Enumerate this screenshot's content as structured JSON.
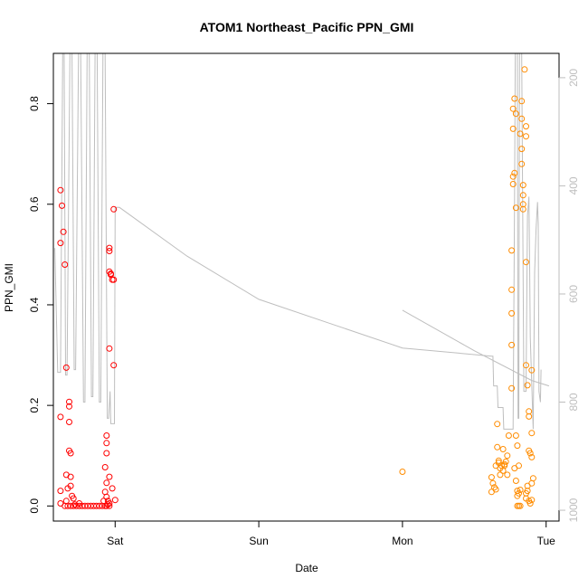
{
  "chart_data": {
    "type": "scatter",
    "title": "ATOM1 Northeast_Pacific PPN_GMI",
    "xlabel": "Date",
    "ylabel": "PPN_GMI",
    "x_ticks": [
      {
        "label": "Sat",
        "value": 1.0
      },
      {
        "label": "Sun",
        "value": 2.0
      },
      {
        "label": "Mon",
        "value": 3.0
      },
      {
        "label": "Tue",
        "value": 4.0
      }
    ],
    "xlim": [
      0.57,
      4.09
    ],
    "ylim": [
      -0.03,
      0.9
    ],
    "y_ticks": [
      0.0,
      0.2,
      0.4,
      0.6,
      0.8
    ],
    "y2_ticks": [
      200,
      400,
      600,
      800,
      1000
    ],
    "y2lim": [
      1020,
      155
    ],
    "y2_color": "#bebebe",
    "grid": false,
    "series": [
      {
        "color": "#ff0000",
        "points": [
          [
            0.62,
            0.628
          ],
          [
            0.63,
            0.597
          ],
          [
            0.62,
            0.523
          ],
          [
            0.64,
            0.545
          ],
          [
            0.65,
            0.48
          ],
          [
            0.66,
            0.275
          ],
          [
            0.68,
            0.207
          ],
          [
            0.68,
            0.198
          ],
          [
            0.62,
            0.177
          ],
          [
            0.68,
            0.167
          ],
          [
            0.68,
            0.11
          ],
          [
            0.69,
            0.105
          ],
          [
            0.66,
            0.062
          ],
          [
            0.69,
            0.058
          ],
          [
            0.62,
            0.03
          ],
          [
            0.67,
            0.035
          ],
          [
            0.69,
            0.04
          ],
          [
            0.7,
            0.02
          ],
          [
            0.66,
            0.01
          ],
          [
            0.62,
            0.005
          ],
          [
            0.71,
            0.015
          ],
          [
            0.72,
            0.003
          ],
          [
            0.75,
            0.005
          ],
          [
            0.65,
            0.0
          ],
          [
            0.67,
            0.0
          ],
          [
            0.69,
            0.0
          ],
          [
            0.71,
            0.0
          ],
          [
            0.73,
            0.0
          ],
          [
            0.75,
            0.0
          ],
          [
            0.77,
            0.0
          ],
          [
            0.79,
            0.0
          ],
          [
            0.81,
            0.0
          ],
          [
            0.83,
            0.0
          ],
          [
            0.85,
            0.0
          ],
          [
            0.87,
            0.0
          ],
          [
            0.89,
            0.0
          ],
          [
            0.91,
            0.0
          ],
          [
            0.93,
            0.0
          ],
          [
            0.94,
            0.0
          ],
          [
            0.95,
            0.003
          ],
          [
            0.92,
            0.01
          ],
          [
            0.96,
            0.0
          ],
          [
            0.94,
            0.14
          ],
          [
            0.94,
            0.125
          ],
          [
            0.94,
            0.105
          ],
          [
            0.93,
            0.077
          ],
          [
            0.96,
            0.058
          ],
          [
            0.94,
            0.046
          ],
          [
            0.93,
            0.028
          ],
          [
            0.94,
            0.018
          ],
          [
            0.95,
            0.01
          ],
          [
            0.96,
            0.005
          ],
          [
            0.96,
            0.513
          ],
          [
            0.96,
            0.507
          ],
          [
            0.96,
            0.466
          ],
          [
            0.97,
            0.462
          ],
          [
            0.97,
            0.46
          ],
          [
            0.98,
            0.45
          ],
          [
            0.99,
            0.45
          ],
          [
            0.99,
            0.59
          ],
          [
            0.96,
            0.313
          ],
          [
            0.99,
            0.28
          ],
          [
            0.98,
            0.035
          ],
          [
            1.0,
            0.012
          ]
        ]
      },
      {
        "color": "#ff8c00",
        "points": [
          [
            3.0,
            0.068
          ],
          [
            3.62,
            0.057
          ],
          [
            3.62,
            0.028
          ],
          [
            3.63,
            0.045
          ],
          [
            3.64,
            0.037
          ],
          [
            3.65,
            0.033
          ],
          [
            3.65,
            0.08
          ],
          [
            3.66,
            0.117
          ],
          [
            3.66,
            0.163
          ],
          [
            3.67,
            0.09
          ],
          [
            3.67,
            0.086
          ],
          [
            3.68,
            0.062
          ],
          [
            3.68,
            0.075
          ],
          [
            3.69,
            0.08
          ],
          [
            3.7,
            0.07
          ],
          [
            3.7,
            0.113
          ],
          [
            3.71,
            0.083
          ],
          [
            3.71,
            0.08
          ],
          [
            3.72,
            0.088
          ],
          [
            3.73,
            0.062
          ],
          [
            3.73,
            0.1
          ],
          [
            3.74,
            0.14
          ],
          [
            3.76,
            0.234
          ],
          [
            3.76,
            0.32
          ],
          [
            3.76,
            0.383
          ],
          [
            3.76,
            0.43
          ],
          [
            3.76,
            0.508
          ],
          [
            3.77,
            0.64
          ],
          [
            3.77,
            0.655
          ],
          [
            3.78,
            0.662
          ],
          [
            3.77,
            0.75
          ],
          [
            3.77,
            0.79
          ],
          [
            3.78,
            0.81
          ],
          [
            3.79,
            0.78
          ],
          [
            3.79,
            0.593
          ],
          [
            3.79,
            0.14
          ],
          [
            3.8,
            0.12
          ],
          [
            3.78,
            0.075
          ],
          [
            3.79,
            0.05
          ],
          [
            3.8,
            0.03
          ],
          [
            3.8,
            0.0
          ],
          [
            3.81,
            0.0
          ],
          [
            3.82,
            0.0
          ],
          [
            3.8,
            0.02
          ],
          [
            3.81,
            0.025
          ],
          [
            3.82,
            0.032
          ],
          [
            3.81,
            0.08
          ],
          [
            3.83,
            0.805
          ],
          [
            3.83,
            0.77
          ],
          [
            3.82,
            0.74
          ],
          [
            3.83,
            0.71
          ],
          [
            3.83,
            0.68
          ],
          [
            3.84,
            0.6
          ],
          [
            3.84,
            0.59
          ],
          [
            3.84,
            0.638
          ],
          [
            3.84,
            0.618
          ],
          [
            3.85,
            0.868
          ],
          [
            3.86,
            0.755
          ],
          [
            3.86,
            0.735
          ],
          [
            3.86,
            0.485
          ],
          [
            3.86,
            0.28
          ],
          [
            3.87,
            0.24
          ],
          [
            3.88,
            0.188
          ],
          [
            3.88,
            0.178
          ],
          [
            3.88,
            0.11
          ],
          [
            3.89,
            0.105
          ],
          [
            3.9,
            0.097
          ],
          [
            3.9,
            0.145
          ],
          [
            3.9,
            0.27
          ],
          [
            3.86,
            0.025
          ],
          [
            3.86,
            0.015
          ],
          [
            3.87,
            0.03
          ],
          [
            3.88,
            0.01
          ],
          [
            3.89,
            0.005
          ],
          [
            3.9,
            0.012
          ],
          [
            3.9,
            0.045
          ],
          [
            3.91,
            0.055
          ],
          [
            3.87,
            0.04
          ]
        ]
      }
    ],
    "secondary_lines": [
      {
        "color": "#bebebe",
        "points": [
          [
            0.58,
            515
          ],
          [
            0.6,
            745
          ],
          [
            0.62,
            745
          ],
          [
            0.635,
            155
          ],
          [
            0.645,
            155
          ],
          [
            0.655,
            750
          ],
          [
            0.665,
            750
          ],
          [
            0.685,
            155
          ],
          [
            0.7,
            155
          ],
          [
            0.715,
            740
          ],
          [
            0.725,
            740
          ],
          [
            0.745,
            155
          ],
          [
            0.76,
            155
          ],
          [
            0.78,
            800
          ],
          [
            0.79,
            800
          ],
          [
            0.805,
            155
          ],
          [
            0.82,
            155
          ],
          [
            0.835,
            790
          ],
          [
            0.845,
            790
          ],
          [
            0.86,
            155
          ],
          [
            0.875,
            155
          ],
          [
            0.89,
            800
          ],
          [
            0.9,
            800
          ],
          [
            0.915,
            155
          ],
          [
            0.93,
            155
          ],
          [
            0.945,
            830
          ],
          [
            0.955,
            830
          ],
          [
            0.965,
            780
          ],
          [
            0.97,
            840
          ],
          [
            0.995,
            840
          ],
          [
            1.0,
            440
          ],
          [
            1.03,
            440
          ],
          [
            1.5,
            530
          ],
          [
            2.0,
            610
          ],
          [
            2.5,
            655
          ],
          [
            3.0,
            700
          ],
          [
            3.62,
            715
          ],
          [
            3.63,
            715
          ],
          [
            3.635,
            770
          ],
          [
            3.66,
            770
          ],
          [
            3.665,
            810
          ],
          [
            3.7,
            810
          ],
          [
            3.705,
            850
          ],
          [
            3.77,
            850
          ],
          [
            3.78,
            430
          ],
          [
            3.785,
            155
          ],
          [
            3.8,
            155
          ],
          [
            3.805,
            830
          ],
          [
            3.81,
            830
          ],
          [
            3.815,
            155
          ],
          [
            3.83,
            155
          ],
          [
            3.845,
            780
          ],
          [
            3.86,
            780
          ],
          [
            3.87,
            455
          ],
          [
            3.88,
            420
          ],
          [
            3.885,
            530
          ],
          [
            3.89,
            680
          ],
          [
            3.91,
            850
          ],
          [
            3.915,
            710
          ],
          [
            3.92,
            560
          ],
          [
            3.93,
            480
          ],
          [
            3.94,
            430
          ],
          [
            3.945,
            470
          ],
          [
            3.95,
            780
          ],
          [
            3.96,
            800
          ],
          [
            3.965,
            740
          ]
        ]
      },
      {
        "color": "#bebebe",
        "points": [
          [
            3.0,
            630
          ],
          [
            3.5,
            705
          ],
          [
            3.9,
            760
          ],
          [
            4.02,
            770
          ]
        ]
      }
    ]
  }
}
